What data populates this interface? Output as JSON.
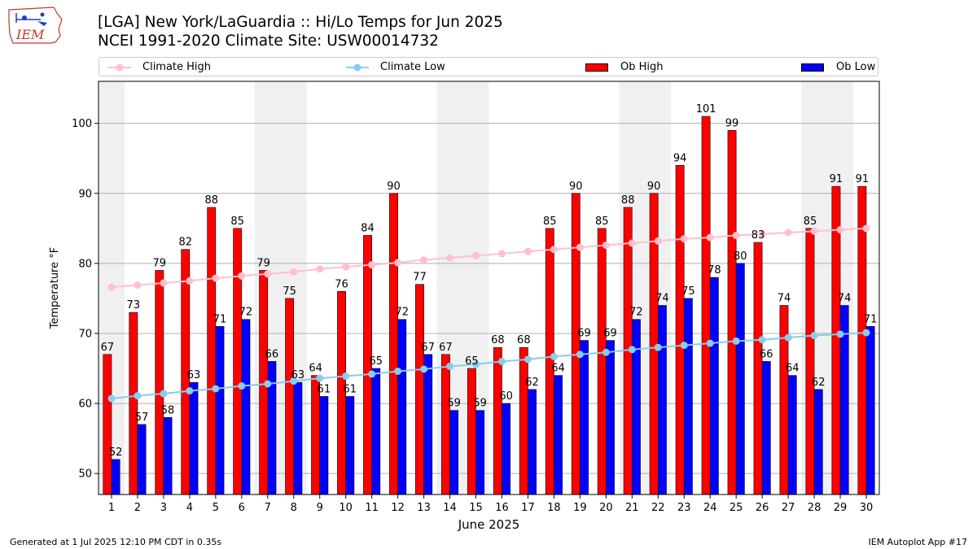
{
  "logo": {
    "text": "IEM"
  },
  "header": {
    "title": "[LGA] New York/LaGuardia :: Hi/Lo Temps for Jun 2025",
    "subtitle": "NCEI 1991-2020 Climate Site: USW00014732"
  },
  "colors": {
    "climate_high": "#ffc0cb",
    "climate_low": "#87ceeb",
    "ob_high": "#ff0000",
    "ob_low": "#0000ff",
    "weekend_shade": "#f0f0f0",
    "grid": "#b0b0b0"
  },
  "footer": {
    "generated": "Generated at 1 Jul 2025 12:10 PM CDT in 0.35s",
    "app": "IEM Autoplot App #17"
  },
  "chart_data": {
    "type": "bar",
    "xlabel": "June 2025",
    "ylabel": "Temperature °F",
    "ylim": [
      47,
      106
    ],
    "yticks": [
      50,
      60,
      70,
      80,
      90,
      100
    ],
    "grid": true,
    "legend_position": "top",
    "categories": [
      "1",
      "2",
      "3",
      "4",
      "5",
      "6",
      "7",
      "8",
      "9",
      "10",
      "11",
      "12",
      "13",
      "14",
      "15",
      "16",
      "17",
      "18",
      "19",
      "20",
      "21",
      "22",
      "23",
      "24",
      "25",
      "26",
      "27",
      "28",
      "29",
      "30"
    ],
    "shaded_day_pairs": [
      [
        1,
        1
      ],
      [
        7,
        8
      ],
      [
        14,
        15
      ],
      [
        21,
        22
      ],
      [
        28,
        29
      ]
    ],
    "series": [
      {
        "name": "Ob High",
        "kind": "bar",
        "values": [
          67,
          73,
          79,
          82,
          88,
          85,
          79,
          75,
          64,
          76,
          84,
          90,
          77,
          67,
          65,
          68,
          68,
          85,
          90,
          85,
          88,
          90,
          94,
          101,
          99,
          83,
          74,
          85,
          91,
          91
        ]
      },
      {
        "name": "Ob Low",
        "kind": "bar",
        "values": [
          52,
          57,
          58,
          63,
          71,
          72,
          66,
          63,
          61,
          61,
          65,
          72,
          67,
          59,
          59,
          60,
          62,
          64,
          69,
          69,
          72,
          74,
          75,
          78,
          80,
          66,
          64,
          62,
          74,
          71
        ]
      },
      {
        "name": "Climate High",
        "kind": "line",
        "values": [
          76.6,
          76.9,
          77.2,
          77.5,
          77.9,
          78.2,
          78.5,
          78.8,
          79.2,
          79.5,
          79.8,
          80.1,
          80.5,
          80.8,
          81.1,
          81.4,
          81.7,
          82.0,
          82.3,
          82.6,
          82.9,
          83.2,
          83.5,
          83.7,
          84.0,
          84.2,
          84.4,
          84.6,
          84.8,
          85.0
        ]
      },
      {
        "name": "Climate Low",
        "kind": "line",
        "values": [
          60.7,
          61.1,
          61.4,
          61.8,
          62.1,
          62.5,
          62.8,
          63.2,
          63.6,
          63.9,
          64.2,
          64.6,
          64.9,
          65.3,
          65.6,
          66.0,
          66.3,
          66.7,
          67.0,
          67.3,
          67.7,
          68.0,
          68.3,
          68.6,
          68.9,
          69.1,
          69.4,
          69.7,
          69.9,
          70.1
        ]
      }
    ]
  }
}
